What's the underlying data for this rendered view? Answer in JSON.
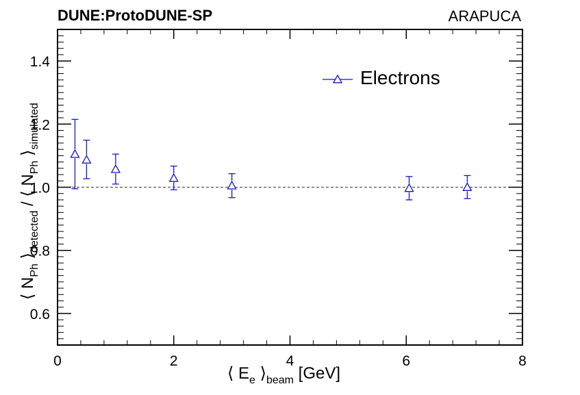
{
  "header": {
    "experiment": "DUNE:ProtoDUNE-SP",
    "detector": "ARAPUCA"
  },
  "colors": {
    "series": "#1414c8",
    "reference_line": "#555555"
  },
  "chart_data": {
    "type": "scatter",
    "title": "DUNE:ProtoDUNE-SP",
    "xlabel": {
      "text_left": "⟨ E",
      "sub1": "e",
      "text_mid": " ⟩",
      "sub2": "beam",
      "text_right": " [GeV]"
    },
    "ylabel": {
      "text1": "⟨ N",
      "sub1": "Ph",
      "text2": " ⟩",
      "sub2": "detected",
      "text3": " / ⟨ N",
      "sub3": "Ph",
      "text4": " ⟩",
      "sub4": "simulated"
    },
    "xlim": [
      0,
      8
    ],
    "ylim": [
      0.5,
      1.5
    ],
    "x_ticks": [
      "0",
      "2",
      "4",
      "6",
      "8"
    ],
    "y_ticks": [
      "0.6",
      "0.8",
      "1.0",
      "1.2",
      "1.4"
    ],
    "legend_position": "top-right",
    "reference_line": 1.0,
    "series": [
      {
        "name": "Electrons",
        "marker": "open-triangle",
        "points": [
          {
            "x": 0.3,
            "y": 1.105,
            "err_low": 0.11,
            "err_high": 0.11
          },
          {
            "x": 0.5,
            "y": 1.087,
            "err_low": 0.06,
            "err_high": 0.062
          },
          {
            "x": 1.0,
            "y": 1.057,
            "err_low": 0.047,
            "err_high": 0.048
          },
          {
            "x": 2.0,
            "y": 1.029,
            "err_low": 0.037,
            "err_high": 0.038
          },
          {
            "x": 3.0,
            "y": 1.005,
            "err_low": 0.038,
            "err_high": 0.038
          },
          {
            "x": 6.05,
            "y": 0.997,
            "err_low": 0.037,
            "err_high": 0.037
          },
          {
            "x": 7.05,
            "y": 1.0,
            "err_low": 0.036,
            "err_high": 0.037
          }
        ]
      }
    ]
  }
}
